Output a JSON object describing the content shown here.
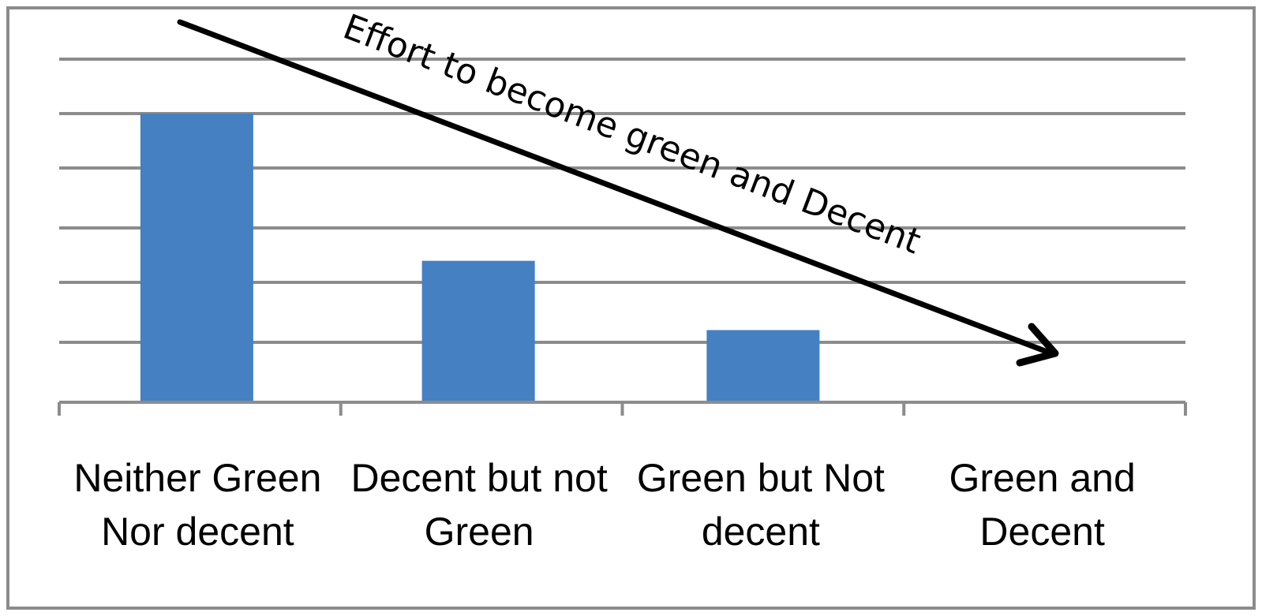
{
  "chart_data": {
    "type": "bar",
    "title": "",
    "xlabel": "",
    "ylabel": "",
    "categories": [
      [
        "Neither Green",
        "Nor decent"
      ],
      [
        "Decent but not",
        "Green"
      ],
      [
        "Green but Not",
        "decent"
      ],
      [
        "Green and",
        "Decent"
      ]
    ],
    "values": [
      5,
      2.45,
      1.25,
      0
    ],
    "ylim": [
      0,
      6
    ],
    "grid": true,
    "bar_color": "#4480c2",
    "annotation": {
      "text": "Effort to become green and Decent",
      "arrow_direction": "down-right"
    }
  }
}
